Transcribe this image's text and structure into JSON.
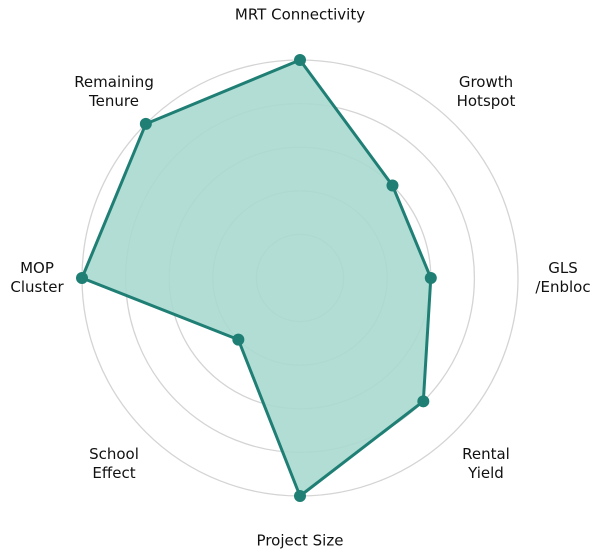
{
  "chart_data": {
    "type": "radar",
    "categories": [
      "MRT Connectivity",
      "Growth\nHotspot",
      "GLS\n/Enbloc",
      "Rental\nYield",
      "Project Size",
      "School\nEffect",
      "MOP\nCluster",
      "Remaining\nTenure"
    ],
    "values": [
      5,
      3,
      3,
      4,
      5,
      2,
      5,
      5
    ],
    "ylim": [
      0,
      5
    ],
    "yticks": [
      1,
      2,
      3,
      4,
      5
    ],
    "grid": true,
    "color": "#1f7f75",
    "fill": "#a9d9cf"
  }
}
